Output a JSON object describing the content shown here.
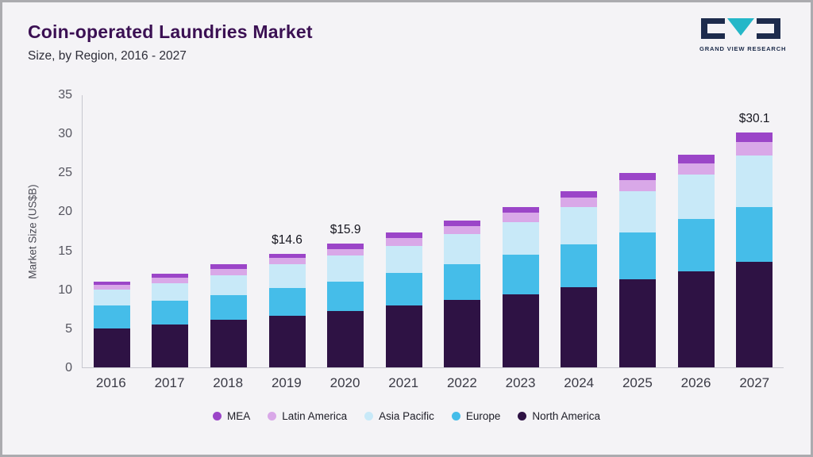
{
  "header": {
    "title": "Coin-operated Laundries Market",
    "subtitle": "Size, by Region, 2016 - 2027",
    "logo_text": "GRAND VIEW RESEARCH"
  },
  "chart_data": {
    "type": "bar",
    "stacked": true,
    "title": "Coin-operated Laundries Market",
    "subtitle": "Size, by Region, 2016 - 2027",
    "xlabel": "",
    "ylabel": "Market Size (US$B)",
    "ylim": [
      0,
      35
    ],
    "yticks": [
      0,
      5,
      10,
      15,
      20,
      25,
      30,
      35
    ],
    "grid": false,
    "legend_position": "bottom",
    "categories": [
      "2016",
      "2017",
      "2018",
      "2019",
      "2020",
      "2021",
      "2022",
      "2023",
      "2024",
      "2025",
      "2026",
      "2027"
    ],
    "series": [
      {
        "name": "North America",
        "color": "#2e1244",
        "values": [
          5.0,
          5.5,
          6.1,
          6.6,
          7.2,
          7.9,
          8.6,
          9.4,
          10.3,
          11.3,
          12.3,
          13.5
        ]
      },
      {
        "name": "Europe",
        "color": "#45bde9",
        "values": [
          2.9,
          3.0,
          3.2,
          3.6,
          3.8,
          4.2,
          4.6,
          5.0,
          5.5,
          6.0,
          6.7,
          7.1
        ]
      },
      {
        "name": "Asia Pacific",
        "color": "#c8e9f8",
        "values": [
          2.1,
          2.3,
          2.5,
          3.0,
          3.3,
          3.5,
          3.9,
          4.2,
          4.8,
          5.3,
          5.7,
          6.6
        ]
      },
      {
        "name": "Latin America",
        "color": "#d9a8e8",
        "values": [
          0.6,
          0.7,
          0.8,
          0.8,
          0.9,
          1.0,
          1.0,
          1.2,
          1.2,
          1.4,
          1.5,
          1.7
        ]
      },
      {
        "name": "MEA",
        "color": "#9b45c8",
        "values": [
          0.4,
          0.5,
          0.6,
          0.6,
          0.7,
          0.7,
          0.7,
          0.8,
          0.8,
          0.9,
          1.1,
          1.2
        ]
      }
    ],
    "bar_labels": {
      "2019": "$14.6",
      "2020": "$15.9",
      "2027": "$30.1"
    },
    "legend": [
      {
        "label": "MEA",
        "color": "#9b45c8"
      },
      {
        "label": "Latin America",
        "color": "#d9a8e8"
      },
      {
        "label": "Asia Pacific",
        "color": "#c8e9f8"
      },
      {
        "label": "Europe",
        "color": "#45bde9"
      },
      {
        "label": "North America",
        "color": "#2e1244"
      }
    ]
  }
}
